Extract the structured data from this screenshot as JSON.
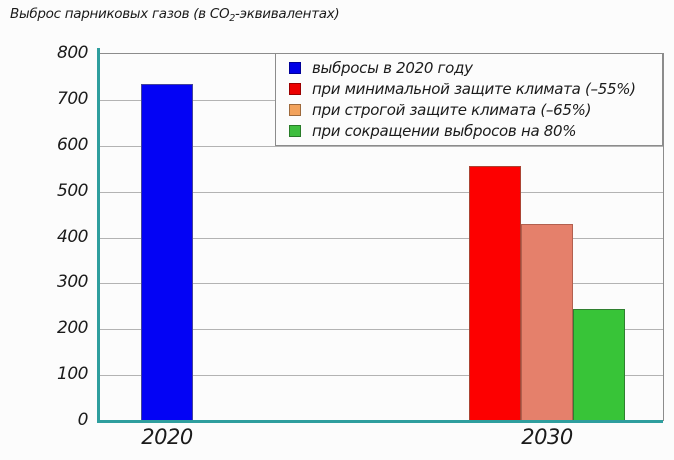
{
  "chart_data": {
    "type": "bar",
    "title": "Выброс парниковых газов (в CO2-эквивалентах)",
    "title_parts": {
      "prefix": "Выброс парниковых газов (в CO",
      "sub": "2",
      "suffix": "-эквивалентах)"
    },
    "xlabel": "",
    "ylabel": "",
    "ylim": [
      0,
      800
    ],
    "yticks": [
      0,
      100,
      200,
      300,
      400,
      500,
      600,
      700,
      800
    ],
    "grid": true,
    "legend_position": "top-right",
    "colors": {
      "axis": "#2f9e9e",
      "gridline": "#b3b3b3",
      "frame": "#8c8c8c",
      "background": "#fcfcfc",
      "text": "#1b1b1b"
    },
    "groups": [
      {
        "label": "2020",
        "bars": [
          {
            "series": "выбросы в 2020 году",
            "value": 735,
            "fill": "#0303f5",
            "border": "#44449a"
          }
        ]
      },
      {
        "label": "2030",
        "bars": [
          {
            "series": "при минимальной защите климата (–55%)",
            "value": 555,
            "fill": "#fd0000",
            "border": "#aa4433"
          },
          {
            "series": "при строгой защите климата (–65%)",
            "value": 430,
            "fill": "#e5806b",
            "border": "#b2604f"
          },
          {
            "series": "при сокращении выбросов на 80%",
            "value": 245,
            "fill": "#38c438",
            "border": "#2f7f2f"
          }
        ]
      }
    ],
    "legend": [
      {
        "label": "выбросы в 2020 году",
        "color": "#0000e6"
      },
      {
        "label": "при минимальной защите климата (–55%)",
        "color": "#ec0000"
      },
      {
        "label": "при строгой защите климата (–65%)",
        "color": "#f2a25c"
      },
      {
        "label": "при сокращении выбросов на 80%",
        "color": "#3fbe3f"
      }
    ]
  }
}
